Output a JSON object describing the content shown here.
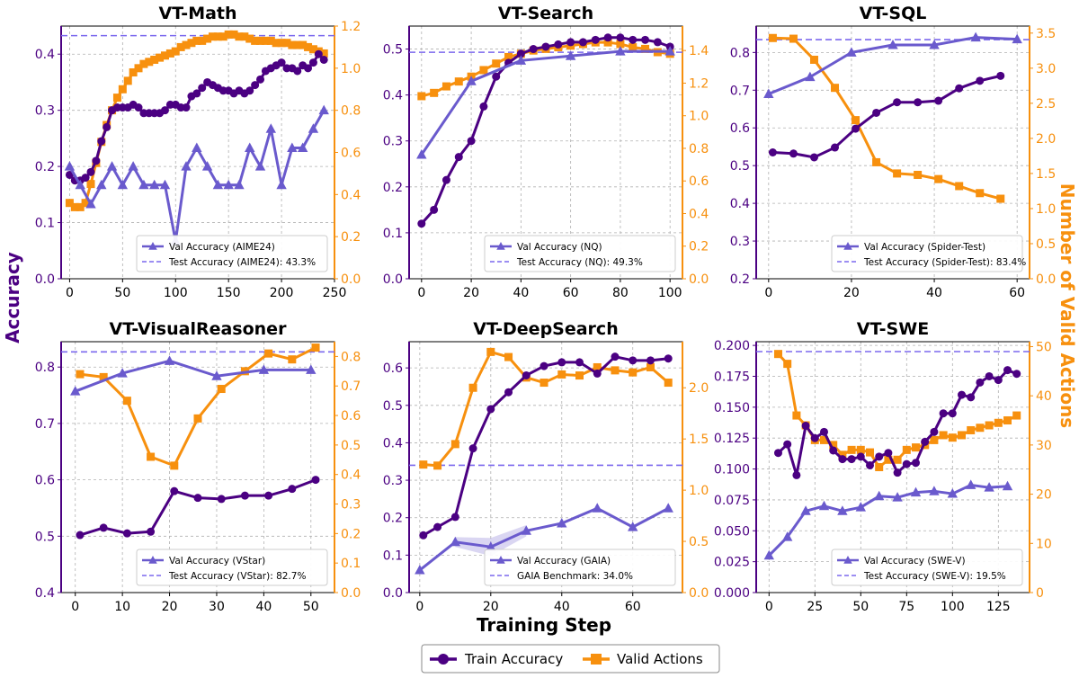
{
  "colors": {
    "train": "#4b0082",
    "val": "#6a5acd",
    "actions": "#f7900e",
    "test_line": "#7b68ee"
  },
  "figure": {
    "xlabel": "Training Step",
    "ylabel_left": "Accuracy",
    "ylabel_right": "Number of Valid Actions",
    "legend": {
      "train": "Train Accuracy",
      "actions": "Valid Actions"
    }
  },
  "chart_data": [
    {
      "type": "line",
      "title": "VT-Math",
      "xlim": [
        -8,
        250
      ],
      "xticks": [
        0,
        50,
        100,
        150,
        200,
        250
      ],
      "ylim_left": [
        0,
        0.45
      ],
      "yticks_left": [
        0.0,
        0.1,
        0.2,
        0.3,
        0.4
      ],
      "ytick_fmt_left": 1,
      "ylim_right": [
        0,
        1.2
      ],
      "yticks_right": [
        0.0,
        0.2,
        0.4,
        0.6,
        0.8,
        1.0,
        1.2
      ],
      "ytick_fmt_right": 1,
      "train": {
        "x": [
          0,
          5,
          10,
          15,
          20,
          25,
          30,
          35,
          40,
          45,
          50,
          55,
          60,
          65,
          70,
          75,
          80,
          85,
          90,
          95,
          100,
          105,
          110,
          115,
          120,
          125,
          130,
          135,
          140,
          145,
          150,
          155,
          160,
          165,
          170,
          175,
          180,
          185,
          190,
          195,
          200,
          205,
          210,
          215,
          220,
          225,
          230,
          235,
          240
        ],
        "y": [
          0.185,
          0.175,
          0.175,
          0.18,
          0.19,
          0.21,
          0.245,
          0.27,
          0.3,
          0.305,
          0.305,
          0.305,
          0.31,
          0.305,
          0.295,
          0.295,
          0.295,
          0.295,
          0.3,
          0.31,
          0.31,
          0.305,
          0.305,
          0.325,
          0.33,
          0.34,
          0.35,
          0.345,
          0.34,
          0.335,
          0.335,
          0.33,
          0.335,
          0.33,
          0.335,
          0.345,
          0.355,
          0.37,
          0.375,
          0.38,
          0.385,
          0.375,
          0.375,
          0.37,
          0.38,
          0.375,
          0.385,
          0.4,
          0.39
        ]
      },
      "val": {
        "x": [
          0,
          10,
          20,
          30,
          40,
          50,
          60,
          70,
          80,
          90,
          100,
          110,
          120,
          130,
          140,
          150,
          160,
          170,
          180,
          190,
          200,
          210,
          220,
          230,
          240
        ],
        "y": [
          0.2,
          0.167,
          0.133,
          0.167,
          0.2,
          0.167,
          0.2,
          0.167,
          0.167,
          0.167,
          0.067,
          0.2,
          0.233,
          0.2,
          0.167,
          0.167,
          0.167,
          0.233,
          0.2,
          0.267,
          0.167,
          0.233,
          0.233,
          0.267,
          0.3
        ]
      },
      "actions": {
        "x": [
          0,
          5,
          10,
          15,
          20,
          25,
          30,
          35,
          40,
          45,
          50,
          55,
          60,
          65,
          70,
          75,
          80,
          85,
          90,
          95,
          100,
          105,
          110,
          115,
          120,
          125,
          130,
          135,
          140,
          145,
          150,
          155,
          160,
          165,
          170,
          175,
          180,
          185,
          190,
          195,
          200,
          205,
          210,
          215,
          220,
          225,
          230,
          235,
          240
        ],
        "y": [
          0.36,
          0.34,
          0.34,
          0.36,
          0.45,
          0.55,
          0.65,
          0.73,
          0.8,
          0.86,
          0.9,
          0.94,
          0.98,
          1.0,
          1.02,
          1.03,
          1.04,
          1.05,
          1.06,
          1.07,
          1.08,
          1.1,
          1.11,
          1.12,
          1.13,
          1.13,
          1.14,
          1.15,
          1.15,
          1.15,
          1.16,
          1.16,
          1.15,
          1.15,
          1.14,
          1.13,
          1.13,
          1.13,
          1.13,
          1.12,
          1.12,
          1.12,
          1.11,
          1.11,
          1.11,
          1.1,
          1.09,
          1.08,
          1.07
        ]
      },
      "test_value": 0.433,
      "legend_val": "Val Accuracy (AIME24)",
      "legend_test": "Test Accuracy (AIME24): 43.3%"
    },
    {
      "type": "line",
      "title": "VT-Search",
      "xlim": [
        -5,
        105
      ],
      "xticks": [
        0,
        20,
        40,
        60,
        80,
        100
      ],
      "ylim_left": [
        0,
        0.55
      ],
      "yticks_left": [
        0.0,
        0.1,
        0.2,
        0.3,
        0.4,
        0.5
      ],
      "ytick_fmt_left": 1,
      "ylim_right": [
        0,
        1.55
      ],
      "yticks_right": [
        0.0,
        0.2,
        0.4,
        0.6,
        0.8,
        1.0,
        1.2,
        1.4
      ],
      "ytick_fmt_right": 1,
      "train": {
        "x": [
          0,
          5,
          10,
          15,
          20,
          25,
          30,
          35,
          40,
          45,
          50,
          55,
          60,
          65,
          70,
          75,
          80,
          85,
          90,
          95,
          100
        ],
        "y": [
          0.12,
          0.15,
          0.215,
          0.265,
          0.3,
          0.375,
          0.44,
          0.47,
          0.49,
          0.5,
          0.505,
          0.51,
          0.515,
          0.515,
          0.52,
          0.525,
          0.525,
          0.52,
          0.52,
          0.515,
          0.505
        ]
      },
      "val": {
        "x": [
          0,
          20,
          40,
          60,
          80,
          100
        ],
        "y": [
          0.27,
          0.43,
          0.475,
          0.485,
          0.495,
          0.495
        ]
      },
      "actions": {
        "x": [
          0,
          5,
          10,
          15,
          20,
          25,
          30,
          35,
          40,
          45,
          50,
          55,
          60,
          65,
          70,
          75,
          80,
          85,
          90,
          95,
          100
        ],
        "y": [
          1.12,
          1.14,
          1.18,
          1.21,
          1.24,
          1.28,
          1.32,
          1.36,
          1.38,
          1.4,
          1.41,
          1.42,
          1.43,
          1.44,
          1.45,
          1.45,
          1.44,
          1.42,
          1.41,
          1.39,
          1.38
        ]
      },
      "test_value": 0.493,
      "legend_val": "Val Accuracy (NQ)",
      "legend_test": "Test Accuracy (NQ): 49.3%"
    },
    {
      "type": "line",
      "title": "VT-SQL",
      "xlim": [
        -3,
        63
      ],
      "xticks": [
        0,
        20,
        40,
        60
      ],
      "ylim_left": [
        0.2,
        0.87
      ],
      "yticks_left": [
        0.2,
        0.3,
        0.4,
        0.5,
        0.6,
        0.7,
        0.8
      ],
      "ytick_fmt_left": 1,
      "ylim_right": [
        0,
        3.6
      ],
      "yticks_right": [
        0.0,
        0.5,
        1.0,
        1.5,
        2.0,
        2.5,
        3.0,
        3.5
      ],
      "ytick_fmt_right": 1,
      "train": {
        "x": [
          1,
          6,
          11,
          16,
          21,
          26,
          31,
          36,
          41,
          46,
          51,
          56
        ],
        "y": [
          0.535,
          0.532,
          0.522,
          0.548,
          0.598,
          0.64,
          0.668,
          0.668,
          0.672,
          0.705,
          0.725,
          0.738
        ]
      },
      "val": {
        "x": [
          0,
          10,
          20,
          30,
          40,
          50,
          60
        ],
        "y": [
          0.69,
          0.735,
          0.8,
          0.82,
          0.82,
          0.84,
          0.835
        ]
      },
      "actions": {
        "x": [
          1,
          6,
          11,
          16,
          21,
          26,
          31,
          36,
          41,
          46,
          51,
          56
        ],
        "y": [
          3.43,
          3.42,
          3.12,
          2.72,
          2.26,
          1.66,
          1.5,
          1.48,
          1.42,
          1.32,
          1.22,
          1.14
        ]
      },
      "test_value": 0.834,
      "legend_val": "Val Accuracy (Spider-Test)",
      "legend_test": "Test Accuracy (Spider-Test): 83.4%"
    },
    {
      "type": "line",
      "title": "VT-VisualReasoner",
      "xlim": [
        -3,
        55
      ],
      "xticks": [
        0,
        10,
        20,
        30,
        40,
        50
      ],
      "ylim_left": [
        0.4,
        0.845
      ],
      "yticks_left": [
        0.4,
        0.5,
        0.6,
        0.7,
        0.8
      ],
      "ytick_fmt_left": 1,
      "ylim_right": [
        0,
        0.85
      ],
      "yticks_right": [
        0.0,
        0.1,
        0.2,
        0.3,
        0.4,
        0.5,
        0.6,
        0.7,
        0.8
      ],
      "ytick_fmt_right": 1,
      "train": {
        "x": [
          1,
          6,
          11,
          16,
          21,
          26,
          31,
          36,
          41,
          46,
          51
        ],
        "y": [
          0.502,
          0.515,
          0.505,
          0.508,
          0.58,
          0.568,
          0.566,
          0.572,
          0.572,
          0.584,
          0.6
        ]
      },
      "val": {
        "x": [
          0,
          10,
          20,
          30,
          40,
          50
        ],
        "y": [
          0.757,
          0.789,
          0.811,
          0.784,
          0.795,
          0.795
        ]
      },
      "actions": {
        "x": [
          1,
          6,
          11,
          16,
          21,
          26,
          31,
          36,
          41,
          46,
          51
        ],
        "y": [
          0.74,
          0.73,
          0.65,
          0.46,
          0.43,
          0.59,
          0.69,
          0.75,
          0.81,
          0.79,
          0.83
        ]
      },
      "test_value": 0.827,
      "legend_val": "Val Accuracy (VStar)",
      "legend_test": "Test Accuracy (VStar): 82.7%"
    },
    {
      "type": "line",
      "title": "VT-DeepSearch",
      "xlim": [
        -3,
        74
      ],
      "xticks": [
        0,
        20,
        40,
        60
      ],
      "ylim_left": [
        0,
        0.67
      ],
      "yticks_left": [
        0.0,
        0.1,
        0.2,
        0.3,
        0.4,
        0.5,
        0.6
      ],
      "ytick_fmt_left": 1,
      "ylim_right": [
        0,
        2.45
      ],
      "yticks_right": [
        0.0,
        0.5,
        1.0,
        1.5,
        2.0
      ],
      "ytick_fmt_right": 1,
      "train": {
        "x": [
          1,
          5,
          10,
          15,
          20,
          25,
          30,
          35,
          40,
          45,
          50,
          55,
          60,
          65,
          70
        ],
        "y": [
          0.153,
          0.175,
          0.202,
          0.385,
          0.49,
          0.535,
          0.58,
          0.605,
          0.615,
          0.615,
          0.585,
          0.63,
          0.62,
          0.62,
          0.625
        ]
      },
      "val": {
        "x": [
          0,
          10,
          20,
          30,
          40,
          50,
          60,
          70
        ],
        "y": [
          0.06,
          0.135,
          0.122,
          0.165,
          0.185,
          0.225,
          0.175,
          0.225
        ]
      },
      "val_band": {
        "x": [
          10,
          20,
          30
        ],
        "lo": [
          0.122,
          0.098,
          0.15
        ],
        "hi": [
          0.148,
          0.146,
          0.18
        ]
      },
      "actions": {
        "x": [
          1,
          5,
          10,
          15,
          20,
          25,
          30,
          35,
          40,
          45,
          50,
          55,
          60,
          65,
          70
        ],
        "y": [
          1.25,
          1.24,
          1.45,
          2.0,
          2.35,
          2.3,
          2.1,
          2.05,
          2.13,
          2.12,
          2.2,
          2.17,
          2.15,
          2.2,
          2.05
        ]
      },
      "test_value": 0.34,
      "legend_val": "Val Accuracy (GAIA)",
      "legend_test": "GAIA Benchmark: 34.0%"
    },
    {
      "type": "line",
      "title": "VT-SWE",
      "xlim": [
        -7,
        142
      ],
      "xticks": [
        0,
        25,
        50,
        75,
        100,
        125
      ],
      "ylim_left": [
        0,
        0.203
      ],
      "yticks_left": [
        0.0,
        0.025,
        0.05,
        0.075,
        0.1,
        0.125,
        0.15,
        0.175,
        0.2
      ],
      "ytick_fmt_left": 3,
      "ylim_right": [
        0,
        51
      ],
      "yticks_right": [
        0,
        10,
        20,
        30,
        40,
        50
      ],
      "ytick_fmt_right": 0,
      "train": {
        "x": [
          5,
          10,
          15,
          20,
          25,
          30,
          35,
          40,
          45,
          50,
          55,
          60,
          65,
          70,
          75,
          80,
          85,
          90,
          95,
          100,
          105,
          110,
          115,
          120,
          125,
          130,
          135
        ],
        "y": [
          0.113,
          0.12,
          0.095,
          0.135,
          0.125,
          0.13,
          0.115,
          0.108,
          0.108,
          0.11,
          0.103,
          0.11,
          0.113,
          0.097,
          0.104,
          0.105,
          0.122,
          0.13,
          0.145,
          0.145,
          0.16,
          0.158,
          0.17,
          0.175,
          0.172,
          0.18,
          0.177
        ]
      },
      "val": {
        "x": [
          0,
          10,
          20,
          30,
          40,
          50,
          60,
          70,
          80,
          90,
          100,
          110,
          120,
          130
        ],
        "y": [
          0.03,
          0.045,
          0.066,
          0.07,
          0.066,
          0.069,
          0.078,
          0.077,
          0.081,
          0.082,
          0.08,
          0.087,
          0.085,
          0.086
        ]
      },
      "actions": {
        "x": [
          5,
          10,
          15,
          20,
          25,
          30,
          35,
          40,
          45,
          50,
          55,
          60,
          65,
          70,
          75,
          80,
          85,
          90,
          95,
          100,
          105,
          110,
          115,
          120,
          125,
          130,
          135
        ],
        "y": [
          48.5,
          46.5,
          36,
          34,
          31,
          31,
          30,
          28,
          29,
          29,
          28.5,
          25.5,
          27,
          27,
          29,
          29.5,
          30,
          31,
          32,
          31.5,
          32,
          33,
          33.5,
          34,
          34.5,
          35,
          36
        ]
      },
      "test_value": 0.195,
      "legend_val": "Val Accuracy (SWE-V)",
      "legend_test": "Test Accuracy (SWE-V): 19.5%"
    }
  ]
}
